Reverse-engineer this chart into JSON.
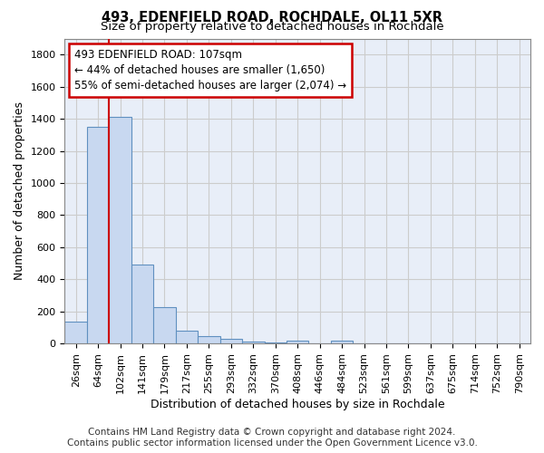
{
  "title": "493, EDENFIELD ROAD, ROCHDALE, OL11 5XR",
  "subtitle": "Size of property relative to detached houses in Rochdale",
  "xlabel": "Distribution of detached houses by size in Rochdale",
  "ylabel": "Number of detached properties",
  "footer_line1": "Contains HM Land Registry data © Crown copyright and database right 2024.",
  "footer_line2": "Contains public sector information licensed under the Open Government Licence v3.0.",
  "bar_labels": [
    "26sqm",
    "64sqm",
    "102sqm",
    "141sqm",
    "179sqm",
    "217sqm",
    "255sqm",
    "293sqm",
    "332sqm",
    "370sqm",
    "408sqm",
    "446sqm",
    "484sqm",
    "523sqm",
    "561sqm",
    "599sqm",
    "637sqm",
    "675sqm",
    "714sqm",
    "752sqm",
    "790sqm"
  ],
  "bar_values": [
    135,
    1350,
    1410,
    490,
    225,
    80,
    47,
    28,
    12,
    5,
    20,
    0,
    15,
    0,
    0,
    0,
    0,
    0,
    0,
    0,
    0
  ],
  "bar_color": "#c8d8f0",
  "bar_edge_color": "#6090c0",
  "highlight_bar_index": 2,
  "highlight_color": "#cc0000",
  "annotation_line1": "493 EDENFIELD ROAD: 107sqm",
  "annotation_line2": "← 44% of detached houses are smaller (1,650)",
  "annotation_line3": "55% of semi-detached houses are larger (2,074) →",
  "annotation_box_color": "#cc0000",
  "ylim": [
    0,
    1900
  ],
  "yticks": [
    0,
    200,
    400,
    600,
    800,
    1000,
    1200,
    1400,
    1600,
    1800
  ],
  "grid_color": "#cccccc",
  "background_color": "#e8eef8",
  "title_fontsize": 10.5,
  "subtitle_fontsize": 9.5,
  "axis_label_fontsize": 9,
  "tick_fontsize": 8,
  "annotation_fontsize": 8.5,
  "footer_fontsize": 7.5
}
